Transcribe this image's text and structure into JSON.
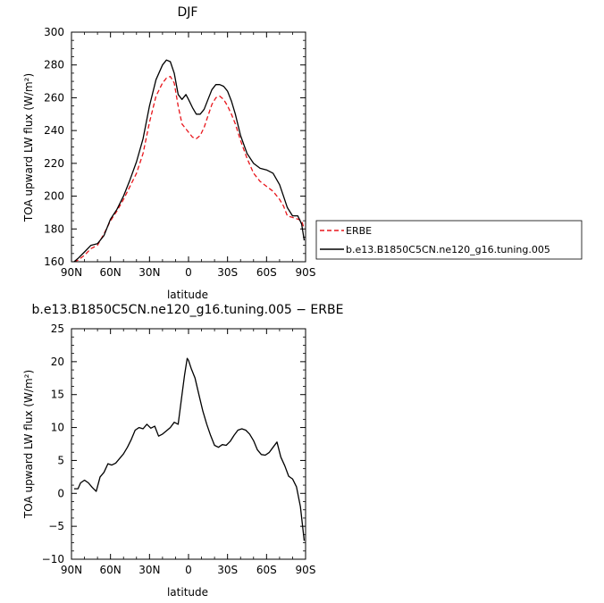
{
  "chart_data": [
    {
      "type": "line",
      "title": "DJF",
      "xlabel": "latitude",
      "ylabel": "TOA upward LW flux (W/m²)",
      "xlim": [
        90,
        -90
      ],
      "ylim": [
        160,
        300
      ],
      "xticks": [
        90,
        60,
        30,
        0,
        -30,
        -60,
        -90
      ],
      "xtick_labels": [
        "90N",
        "60N",
        "30N",
        "0",
        "30S",
        "60S",
        "90S"
      ],
      "yticks": [
        160,
        180,
        200,
        220,
        240,
        260,
        280,
        300
      ],
      "ytick_labels": [
        "160",
        "180",
        "200",
        "220",
        "240",
        "260",
        "280",
        "300"
      ],
      "legend_position": "right",
      "grid": false,
      "series": [
        {
          "name": "ERBE",
          "color": "#e8151b",
          "dash": "dashed",
          "x": [
            88,
            85,
            80,
            75,
            70,
            65,
            60,
            55,
            50,
            45,
            40,
            35,
            30,
            25,
            20,
            17,
            14,
            11,
            8,
            5,
            2,
            0,
            -3,
            -6,
            -9,
            -12,
            -15,
            -18,
            -21,
            -24,
            -27,
            -30,
            -33,
            -36,
            -40,
            -45,
            -50,
            -55,
            -60,
            -65,
            -70,
            -73,
            -76,
            -80,
            -84,
            -87,
            -89
          ],
          "y": [
            160,
            161,
            164,
            168,
            170,
            177,
            185,
            191,
            198,
            206,
            214,
            226,
            245,
            261,
            269,
            272,
            273,
            269,
            255,
            244,
            241,
            239,
            236,
            235,
            237,
            242,
            249,
            256,
            260,
            261,
            259,
            255,
            250,
            244,
            234,
            223,
            214,
            209,
            206,
            203,
            198,
            194,
            188,
            187,
            186,
            185,
            180
          ]
        },
        {
          "name": "b.e13.B1850C5CN.ne120_g16.tuning.005",
          "color": "#000000",
          "dash": "solid",
          "x": [
            88,
            85,
            80,
            75,
            70,
            65,
            60,
            55,
            50,
            45,
            40,
            35,
            30,
            25,
            20,
            17,
            14,
            11,
            8,
            5,
            2,
            0,
            -3,
            -6,
            -9,
            -12,
            -15,
            -18,
            -21,
            -24,
            -27,
            -30,
            -33,
            -36,
            -40,
            -45,
            -50,
            -55,
            -60,
            -65,
            -70,
            -73,
            -76,
            -80,
            -84,
            -87,
            -89
          ],
          "y": [
            160,
            162,
            166,
            170,
            171,
            176,
            186,
            192,
            200,
            210,
            221,
            235,
            255,
            271,
            280,
            283,
            282,
            275,
            262,
            259,
            262,
            259,
            254,
            250,
            250,
            253,
            259,
            265,
            268,
            268,
            267,
            264,
            258,
            250,
            237,
            226,
            220,
            217,
            216,
            214,
            207,
            200,
            193,
            188,
            188,
            183,
            173
          ]
        }
      ]
    },
    {
      "type": "line",
      "title": "b.e13.B1850C5CN.ne120_g16.tuning.005 − ERBE",
      "xlabel": "latitude",
      "ylabel": "TOA upward LW flux (W/m²)",
      "xlim": [
        90,
        -90
      ],
      "ylim": [
        -10,
        25
      ],
      "xticks": [
        90,
        60,
        30,
        0,
        -30,
        -60,
        -90
      ],
      "xtick_labels": [
        "90N",
        "60N",
        "30N",
        "0",
        "30S",
        "60S",
        "90S"
      ],
      "yticks": [
        -10,
        -5,
        0,
        5,
        10,
        15,
        20,
        25
      ],
      "ytick_labels": [
        "−10",
        "−5",
        "0",
        "5",
        "10",
        "15",
        "20",
        "25"
      ],
      "grid": false,
      "series": [
        {
          "color": "#000000",
          "dash": "solid",
          "x": [
            88,
            85,
            83,
            80,
            77,
            74,
            71,
            68,
            65,
            62,
            59,
            56,
            53,
            50,
            47,
            44,
            41,
            38,
            35,
            32,
            29,
            26,
            23,
            20,
            17,
            14,
            11,
            8,
            5,
            3,
            1,
            0,
            -2,
            -5,
            -8,
            -11,
            -14,
            -17,
            -20,
            -23,
            -26,
            -29,
            -32,
            -35,
            -38,
            -41,
            -44,
            -47,
            -50,
            -53,
            -56,
            -59,
            -62,
            -65,
            -68,
            -71,
            -74,
            -77,
            -80,
            -83,
            -86,
            -89
          ],
          "y": [
            0.7,
            0.7,
            1.6,
            2.0,
            1.6,
            0.9,
            0.3,
            2.5,
            3.2,
            4.5,
            4.3,
            4.6,
            5.3,
            6.0,
            7.0,
            8.2,
            9.6,
            10.0,
            9.8,
            10.5,
            9.9,
            10.2,
            8.7,
            9.0,
            9.5,
            10.0,
            10.8,
            10.5,
            15.0,
            18.0,
            20.5,
            20.2,
            19.0,
            17.5,
            15.0,
            12.5,
            10.5,
            8.8,
            7.3,
            7.0,
            7.4,
            7.3,
            7.9,
            8.8,
            9.6,
            9.8,
            9.6,
            9.0,
            8.0,
            6.6,
            5.9,
            5.8,
            6.2,
            7.0,
            7.8,
            5.5,
            4.2,
            2.6,
            2.2,
            1.0,
            -2.0,
            -7.2
          ]
        }
      ]
    }
  ]
}
